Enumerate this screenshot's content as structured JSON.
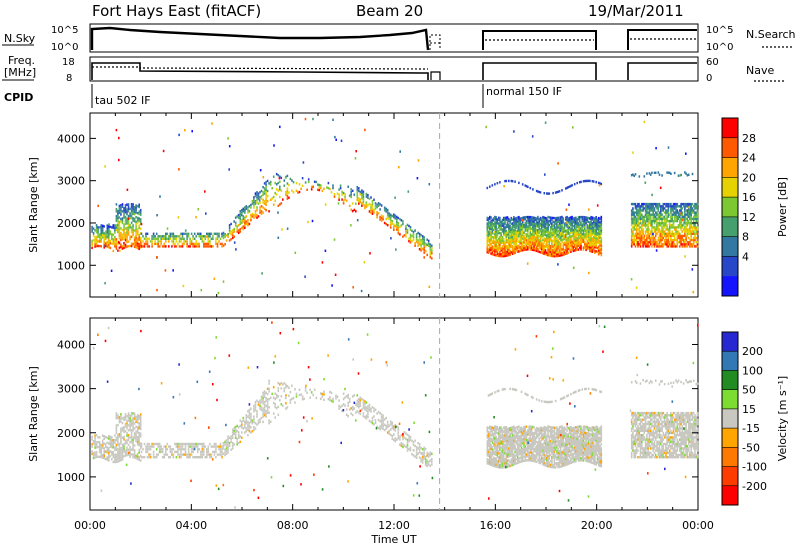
{
  "header": {
    "radar": "Fort Hays East (fitACF)",
    "beam": "Beam 20",
    "date": "19/Mar/2011"
  },
  "meta_panel": {
    "left_label_1": "N.Sky",
    "left_ticks_1": [
      "10^5",
      "10^0"
    ],
    "right_ticks_1": [
      "10^5",
      "10^0"
    ],
    "right_label_1": "N.Search",
    "left_label_2a": "Freq.",
    "left_label_2b": "[MHz]",
    "left_ticks_2": [
      "18",
      "8"
    ],
    "right_ticks_2": [
      "60",
      "0"
    ],
    "right_label_2": "Nave",
    "cpid_label": "CPID",
    "cpid_1": "tau 502 IF",
    "cpid_2": "normal 150 IF"
  },
  "chart_data": [
    {
      "type": "heatmap",
      "name": "power",
      "ylabel": "Slant Range [km]",
      "yticks": [
        1000,
        2000,
        3000,
        4000
      ],
      "ylim": [
        250,
        4600
      ],
      "xlim": [
        0,
        24
      ],
      "xticks": [
        "00:00",
        "04:00",
        "08:00",
        "12:00",
        "16:00",
        "20:00",
        "00:00"
      ],
      "colorbar": {
        "label": "Power [dB]",
        "ticks": [
          "28",
          "24",
          "20",
          "16",
          "12",
          "8",
          "4"
        ],
        "colors": [
          "#ff0000",
          "#ff5a00",
          "#ffa500",
          "#e6d200",
          "#7dc832",
          "#46a06e",
          "#3278a0",
          "#2846c8",
          "#1414ff"
        ]
      },
      "data_gaps_hours": [
        [
          13.6,
          15.6
        ],
        [
          20.3,
          21.3
        ]
      ]
    },
    {
      "type": "heatmap",
      "name": "velocity",
      "ylabel": "Slant Range [km]",
      "yticks": [
        1000,
        2000,
        3000,
        4000
      ],
      "ylim": [
        250,
        4600
      ],
      "xlim": [
        0,
        24
      ],
      "xticks": [
        "00:00",
        "04:00",
        "08:00",
        "12:00",
        "16:00",
        "20:00",
        "00:00"
      ],
      "xlabel": "Time UT",
      "colorbar": {
        "label": "Velocity [m s⁻¹]",
        "ticks": [
          "200",
          "100",
          "50",
          "15",
          "-15",
          "-50",
          "-100",
          "-200"
        ],
        "colors": [
          "#2828d2",
          "#3278b4",
          "#228b22",
          "#7ddc32",
          "#c8c8c0",
          "#ffa500",
          "#ff7800",
          "#ff3c00",
          "#ff0000"
        ]
      },
      "data_gaps_hours": [
        [
          13.6,
          15.6
        ],
        [
          20.3,
          21.3
        ]
      ]
    }
  ]
}
